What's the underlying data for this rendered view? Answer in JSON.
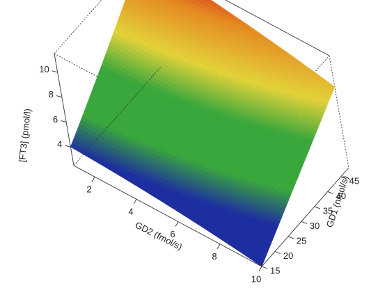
{
  "chart_data": {
    "type": "surface",
    "x_axis": {
      "label": "GD2 (fmol/s)",
      "ticks": [
        2,
        4,
        6,
        8,
        10
      ],
      "range": [
        1,
        10
      ]
    },
    "y_axis": {
      "label": "GD1 (nmol/s)",
      "ticks": [
        15,
        20,
        25,
        30,
        35,
        40,
        45
      ],
      "range": [
        15,
        48
      ]
    },
    "z_axis": {
      "label": "[FT3] (pmol/l)",
      "ticks": [
        4,
        6,
        8,
        10
      ],
      "range": [
        2.5,
        11.5
      ]
    },
    "corner_values": [
      {
        "x": 1,
        "y": 15,
        "z": 4.0
      },
      {
        "x": 1,
        "y": 48,
        "z": 11.5
      },
      {
        "x": 10,
        "y": 48,
        "z": 9.0
      },
      {
        "x": 10,
        "y": 15,
        "z": 2.5
      }
    ],
    "colors": {
      "low": "#1d2fa0",
      "mid": "#3aa73c",
      "upper": "#e3d23a",
      "orange": "#e48a22",
      "high": "#d41f14"
    }
  }
}
